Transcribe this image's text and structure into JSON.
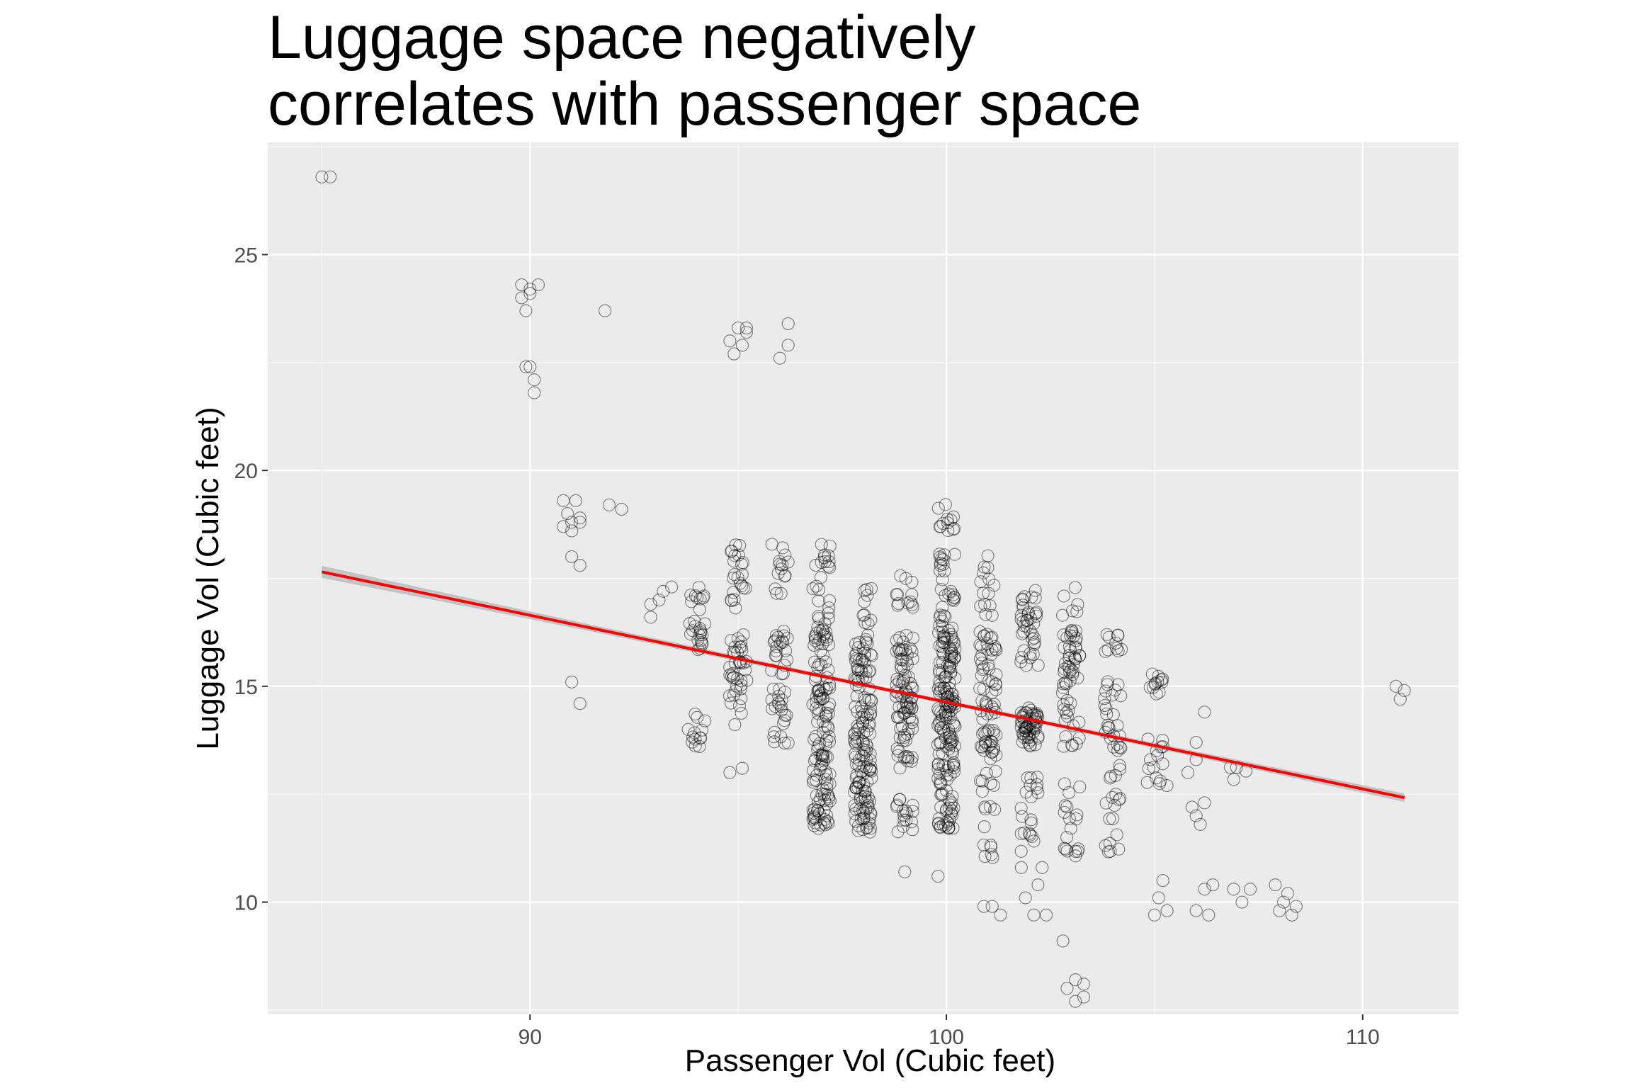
{
  "title_lines": [
    "Luggage space negatively",
    "correlates with passenger space"
  ],
  "chart_data": {
    "type": "scatter",
    "title": "Luggage space negatively correlates with passenger space",
    "xlabel": "Passenger Vol (Cubic feet)",
    "ylabel": "Luggage Vol (Cubic feet)",
    "xlim": [
      83.7,
      112.3
    ],
    "ylim": [
      7.4,
      27.6
    ],
    "x_ticks": [
      90,
      100,
      110
    ],
    "y_ticks": [
      10,
      15,
      20,
      25
    ],
    "grid": true,
    "points": [
      [
        85,
        26.8
      ],
      [
        85.2,
        26.8
      ],
      [
        89.8,
        24.3
      ],
      [
        90,
        24.2
      ],
      [
        90.2,
        24.3
      ],
      [
        89.8,
        24.0
      ],
      [
        90,
        24.1
      ],
      [
        89.9,
        23.7
      ],
      [
        89.9,
        22.4
      ],
      [
        90,
        22.4
      ],
      [
        90.1,
        22.1
      ],
      [
        90.1,
        21.8
      ],
      [
        90.8,
        19.3
      ],
      [
        91.1,
        19.3
      ],
      [
        90.9,
        19.0
      ],
      [
        91.0,
        18.8
      ],
      [
        91.2,
        18.8
      ],
      [
        90.8,
        18.7
      ],
      [
        91.0,
        18.6
      ],
      [
        91.2,
        18.9
      ],
      [
        91.0,
        18.0
      ],
      [
        91.2,
        17.8
      ],
      [
        91.0,
        15.1
      ],
      [
        91.2,
        14.6
      ],
      [
        91.8,
        23.7
      ],
      [
        91.9,
        19.2
      ],
      [
        92.2,
        19.1
      ],
      [
        92.9,
        16.9
      ],
      [
        93.1,
        17.0
      ],
      [
        93.2,
        17.2
      ],
      [
        93.4,
        17.3
      ],
      [
        92.9,
        16.6
      ],
      [
        95.0,
        23.3
      ],
      [
        95.2,
        23.3
      ],
      [
        94.8,
        23.0
      ],
      [
        95.1,
        22.9
      ],
      [
        94.9,
        22.7
      ],
      [
        95.2,
        23.2
      ],
      [
        96.0,
        22.6
      ],
      [
        96.2,
        23.4
      ],
      [
        96.2,
        22.9
      ],
      [
        95.1,
        13.1
      ],
      [
        94.8,
        13.0
      ],
      [
        94.2,
        14.2
      ],
      [
        93.8,
        14.0
      ],
      [
        94.1,
        13.8
      ],
      [
        103.3,
        7.8
      ],
      [
        103.1,
        8.2
      ],
      [
        103.3,
        8.1
      ],
      [
        102.9,
        8.0
      ],
      [
        103.1,
        7.7
      ],
      [
        102.8,
        9.1
      ],
      [
        110.8,
        15.0
      ],
      [
        111.0,
        14.9
      ],
      [
        110.9,
        14.7
      ],
      [
        105.2,
        10.5
      ],
      [
        105.1,
        10.1
      ],
      [
        105.3,
        9.8
      ],
      [
        105.0,
        9.7
      ],
      [
        106.2,
        10.3
      ],
      [
        106.3,
        9.7
      ],
      [
        106.0,
        9.8
      ],
      [
        106.4,
        10.4
      ],
      [
        106.9,
        10.3
      ],
      [
        107.1,
        10.0
      ],
      [
        107.3,
        10.3
      ],
      [
        107.9,
        10.4
      ],
      [
        108.2,
        10.2
      ],
      [
        108.4,
        9.9
      ],
      [
        108.0,
        9.8
      ],
      [
        108.3,
        9.7
      ],
      [
        108.1,
        10.0
      ],
      [
        106.0,
        12.0
      ],
      [
        105.9,
        12.2
      ],
      [
        106.2,
        12.3
      ],
      [
        106.1,
        11.8
      ],
      [
        105.8,
        13.0
      ],
      [
        106.0,
        13.7
      ],
      [
        106.2,
        14.4
      ],
      [
        106.0,
        13.3
      ],
      [
        105.2,
        13.6
      ],
      [
        105.3,
        12.7
      ],
      [
        104.9,
        13.3
      ],
      [
        101.9,
        10.1
      ],
      [
        102.2,
        10.4
      ],
      [
        101.8,
        10.8
      ],
      [
        102.3,
        10.8
      ],
      [
        102.1,
        9.7
      ],
      [
        102.4,
        9.7
      ],
      [
        101.1,
        9.9
      ],
      [
        100.9,
        9.9
      ],
      [
        101.3,
        9.7
      ],
      [
        99.0,
        10.7
      ],
      [
        99.8,
        10.6
      ]
    ],
    "clusters": [
      [
        94,
        15.7,
        17.3,
        26
      ],
      [
        94,
        13.6,
        14.4,
        10
      ],
      [
        95,
        14.1,
        16.2,
        38
      ],
      [
        95,
        16.8,
        18.3,
        22
      ],
      [
        96,
        13.6,
        16.3,
        42
      ],
      [
        96,
        17.0,
        18.3,
        14
      ],
      [
        97,
        11.7,
        13.3,
        50
      ],
      [
        97,
        13.3,
        16.7,
        85
      ],
      [
        97,
        16.8,
        18.3,
        18
      ],
      [
        98,
        11.6,
        13.6,
        70
      ],
      [
        98,
        13.6,
        16.3,
        75
      ],
      [
        98,
        16.4,
        17.3,
        10
      ],
      [
        99,
        11.6,
        12.4,
        16
      ],
      [
        99,
        13.1,
        16.3,
        85
      ],
      [
        99,
        16.6,
        17.6,
        12
      ],
      [
        100,
        11.7,
        13.6,
        55
      ],
      [
        100,
        13.6,
        16.4,
        120
      ],
      [
        100,
        16.4,
        18.3,
        28
      ],
      [
        100,
        18.6,
        19.3,
        12
      ],
      [
        101,
        11.0,
        13.6,
        26
      ],
      [
        101,
        13.6,
        16.3,
        60
      ],
      [
        101,
        16.6,
        18.2,
        14
      ],
      [
        102,
        11.0,
        13.0,
        20
      ],
      [
        102,
        13.6,
        14.5,
        55
      ],
      [
        102,
        15.3,
        17.3,
        38
      ],
      [
        103,
        11.0,
        13.0,
        18
      ],
      [
        103,
        13.6,
        16.3,
        55
      ],
      [
        103,
        16.6,
        17.3,
        6
      ],
      [
        104,
        11.0,
        12.5,
        14
      ],
      [
        104,
        12.8,
        15.2,
        30
      ],
      [
        104,
        15.8,
        16.3,
        10
      ],
      [
        105,
        12.7,
        13.8,
        12
      ],
      [
        105,
        14.8,
        15.3,
        12
      ],
      [
        107,
        12.8,
        13.2,
        4
      ]
    ],
    "trend_line": {
      "x": [
        85,
        111
      ],
      "y": [
        17.65,
        12.42
      ],
      "color": "#ff0000",
      "band_color": "#bcbcbc"
    },
    "panel_background": "#ebebeb",
    "point_stroke": "#000000"
  }
}
